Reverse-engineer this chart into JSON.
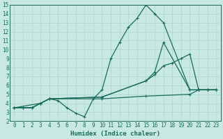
{
  "xlabel": "Humidex (Indice chaleur)",
  "xlim": [
    -0.5,
    23.5
  ],
  "ylim": [
    2,
    15
  ],
  "xticks": [
    0,
    1,
    2,
    3,
    4,
    5,
    6,
    7,
    8,
    9,
    10,
    11,
    12,
    13,
    14,
    15,
    16,
    17,
    18,
    19,
    20,
    21,
    22,
    23
  ],
  "yticks": [
    2,
    3,
    4,
    5,
    6,
    7,
    8,
    9,
    10,
    11,
    12,
    13,
    14,
    15
  ],
  "bg_color": "#c8e8e4",
  "grid_color": "#b0d8d4",
  "line_color": "#1a6b5a",
  "series": [
    {
      "x": [
        0,
        1,
        2,
        3,
        4,
        5,
        6,
        7,
        8,
        9,
        10,
        11,
        12,
        13,
        14,
        15,
        16,
        17,
        20,
        21,
        22,
        23
      ],
      "y": [
        3.5,
        3.5,
        3.5,
        4.0,
        4.5,
        4.3,
        3.5,
        2.9,
        2.5,
        4.5,
        5.5,
        9.0,
        10.8,
        12.5,
        13.5,
        15.0,
        14.0,
        13.0,
        5.5,
        5.5,
        5.5,
        5.5
      ]
    },
    {
      "x": [
        0,
        1,
        2,
        3,
        4,
        10,
        15,
        16,
        17,
        18,
        19,
        20,
        21,
        22,
        23
      ],
      "y": [
        3.5,
        3.5,
        3.5,
        4.0,
        4.5,
        4.7,
        6.5,
        7.2,
        8.2,
        8.5,
        9.0,
        9.5,
        5.5,
        5.5,
        5.5
      ]
    },
    {
      "x": [
        0,
        3,
        4,
        10,
        15,
        16,
        17,
        20,
        21,
        22,
        23
      ],
      "y": [
        3.5,
        4.0,
        4.5,
        4.7,
        6.5,
        7.5,
        10.8,
        5.5,
        5.5,
        5.5,
        5.5
      ]
    },
    {
      "x": [
        0,
        1,
        2,
        3,
        4,
        10,
        15,
        20,
        21,
        22,
        23
      ],
      "y": [
        3.5,
        3.5,
        3.5,
        4.0,
        4.5,
        4.5,
        4.8,
        5.0,
        5.5,
        5.5,
        5.5
      ]
    }
  ]
}
